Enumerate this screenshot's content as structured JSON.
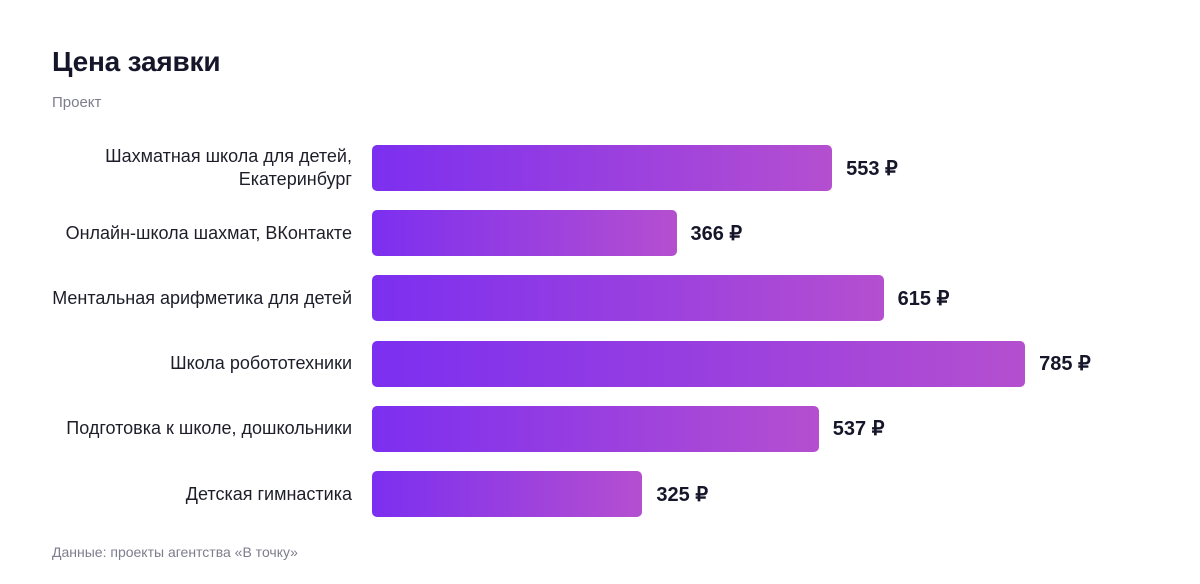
{
  "title": "Цена заявки",
  "subtitle": "Проект",
  "footer": "Данные: проекты агентства «В точку»",
  "currency": "₽",
  "colors": {
    "bar_start": "#7c2ff0",
    "bar_end": "#b54fd0",
    "text": "#16162a",
    "muted": "#7d7d8c"
  },
  "chart_data": {
    "type": "bar",
    "orientation": "horizontal",
    "categories": [
      "Шахматная школа для детей, Екатеринбург",
      "Онлайн-школа шахмат, ВКонтакте",
      "Ментальная арифметика для детей",
      "Школа робототехники",
      "Подготовка к школе, дошкольники",
      "Детская гимнастика"
    ],
    "values": [
      553,
      366,
      615,
      785,
      537,
      325
    ],
    "value_suffix": "₽",
    "grid": false,
    "legend": "none"
  }
}
